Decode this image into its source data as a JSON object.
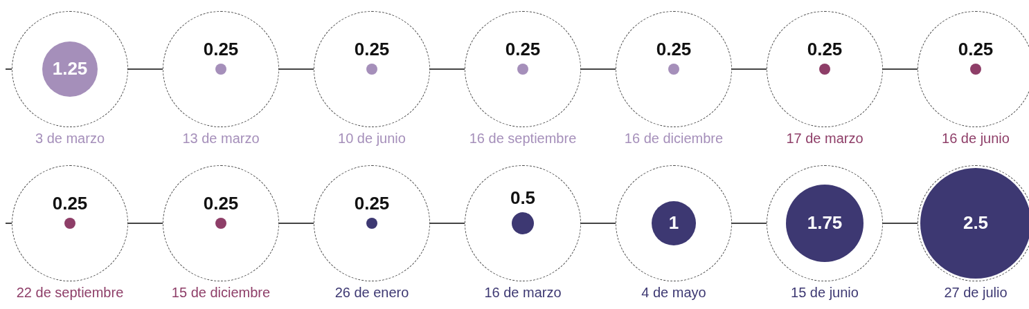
{
  "chart_data": [
    {
      "type": "other",
      "categories": [
        "3 de marzo",
        "13 de marzo",
        "10 de junio",
        "16 de septiembre",
        "16 de diciembre",
        "17 de marzo",
        "16 de junio"
      ],
      "values": [
        1.25,
        0.25,
        0.25,
        0.25,
        0.25,
        0.25,
        0.25
      ],
      "colors": [
        "#a58fba",
        "#a58fba",
        "#a58fba",
        "#a58fba",
        "#a58fba",
        "#8e3e68",
        "#8e3e68"
      ],
      "data_labels": true
    },
    {
      "type": "other",
      "categories": [
        "22 de septiembre",
        "15 de diciembre",
        "26 de enero",
        "16 de marzo",
        "4 de mayo",
        "15 de junio",
        "27 de julio"
      ],
      "values": [
        0.25,
        0.25,
        0.25,
        0.5,
        1,
        1.75,
        2.5
      ],
      "colors": [
        "#8e3e68",
        "#8e3e68",
        "#3d3872",
        "#3d3872",
        "#3d3872",
        "#3d3872",
        "#3d3872"
      ],
      "data_labels": true
    }
  ]
}
